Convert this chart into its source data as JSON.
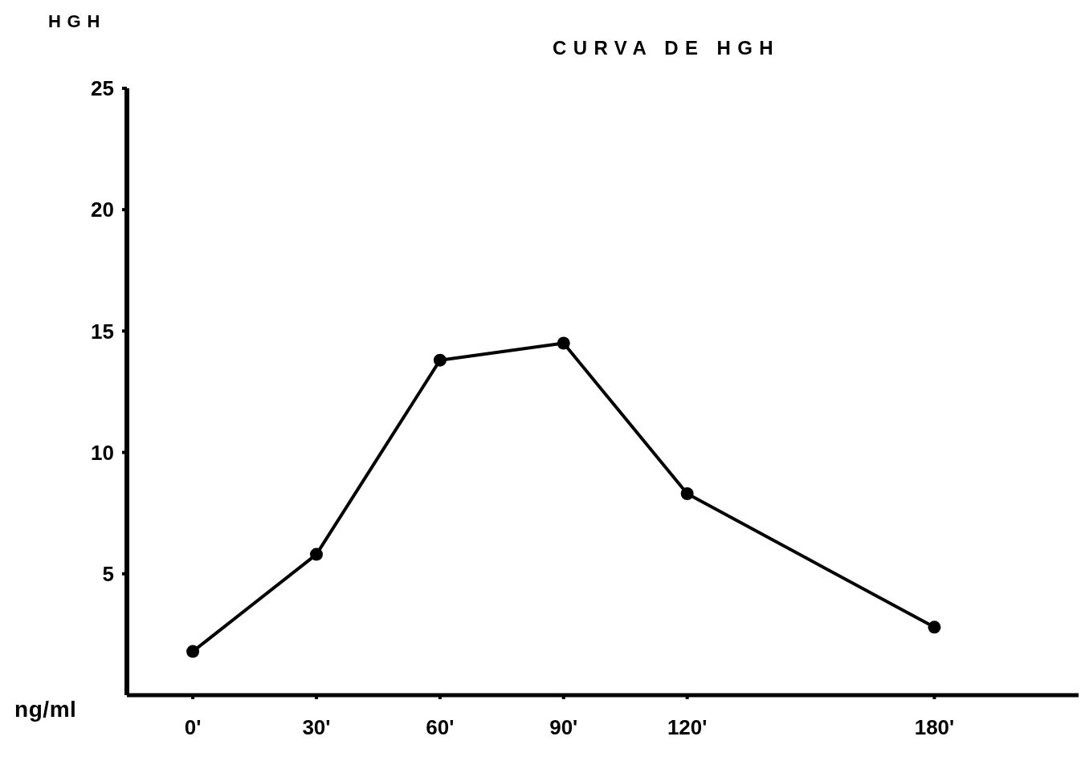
{
  "chart_data": {
    "type": "line",
    "title": "CURVA DE HGH",
    "ylabel": "HGH",
    "annotations": [
      "ng/ml"
    ],
    "x": [
      0,
      30,
      60,
      90,
      120,
      180
    ],
    "series": [
      {
        "color": "#000000",
        "values": [
          1.8,
          5.8,
          13.8,
          14.5,
          8.3,
          2.8
        ]
      }
    ],
    "xlim": [
      -16,
      215
    ],
    "xticks": [
      {
        "value": 0,
        "label": "0'"
      },
      {
        "value": 30,
        "label": "30'"
      },
      {
        "value": 60,
        "label": "60'"
      },
      {
        "value": 90,
        "label": "90'"
      },
      {
        "value": 120,
        "label": "120'"
      },
      {
        "value": 180,
        "label": "180'"
      }
    ],
    "ylim": [
      0,
      25
    ],
    "yticks": [
      5,
      10,
      15,
      20,
      25
    ],
    "marker": "circle",
    "line_style": "solid",
    "grid": false,
    "legend": false
  }
}
